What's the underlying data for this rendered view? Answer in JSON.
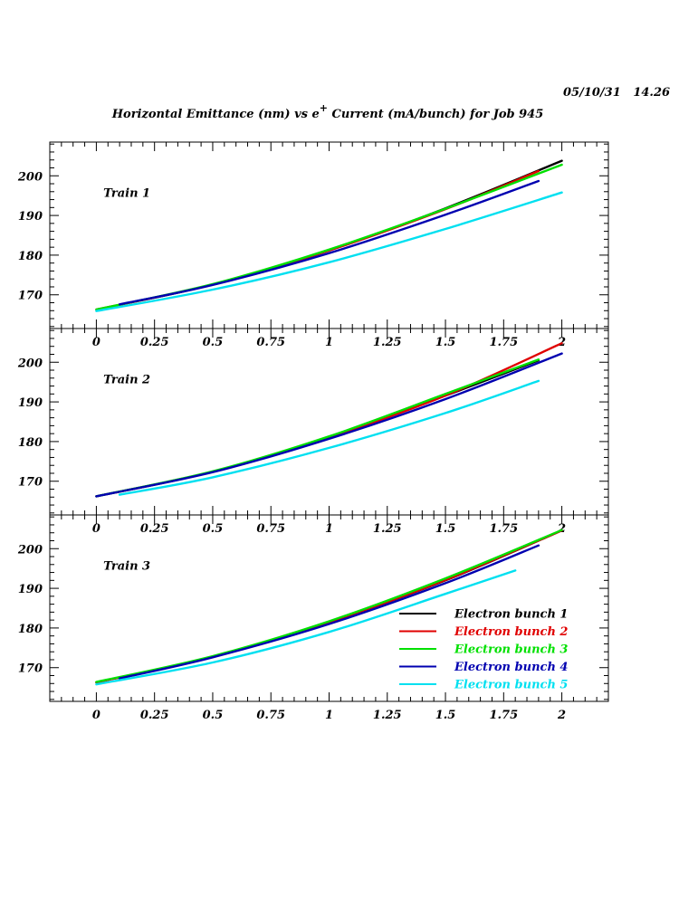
{
  "header": {
    "timestamp": "05/10/31   14.26",
    "title_part1": "Horizontal Emittance (nm) vs e",
    "title_superscript": "+",
    "title_part2": " Current (mA/bunch) for Job 945"
  },
  "chart_data": {
    "type": "line",
    "xlim": [
      -0.2,
      2.2
    ],
    "ylim": [
      161.5,
      208.5
    ],
    "x_ticks": [
      "0",
      "0.25",
      "0.5",
      "0.75",
      "1",
      "1.25",
      "1.5",
      "1.75",
      "2"
    ],
    "x_tick_values": [
      0,
      0.25,
      0.5,
      0.75,
      1,
      1.25,
      1.5,
      1.75,
      2
    ],
    "y_ticks": [
      "170",
      "180",
      "190",
      "200"
    ],
    "y_tick_values": [
      170,
      180,
      190,
      200
    ],
    "legend_position": "bottom-right of Train 3 panel",
    "legend": [
      {
        "name": "Electron bunch 1",
        "color": "#000000"
      },
      {
        "name": "Electron bunch 2",
        "color": "#e00000"
      },
      {
        "name": "Electron bunch 3",
        "color": "#00e000"
      },
      {
        "name": "Electron bunch 4",
        "color": "#0000b0"
      },
      {
        "name": "Electron bunch 5",
        "color": "#00e0f0"
      }
    ],
    "panels": [
      {
        "label": "Train 1",
        "series": [
          {
            "name": "Electron bunch 1",
            "x": [
              0.1,
              0.5,
              1.0,
              1.5,
              2.0
            ],
            "y": [
              167.5,
              172.6,
              181.2,
              191.8,
              203.8
            ]
          },
          {
            "name": "Electron bunch 2",
            "x": [
              0.0,
              0.5,
              1.0,
              1.5,
              1.9
            ],
            "y": [
              166.3,
              172.6,
              181.2,
              191.6,
              201.2
            ]
          },
          {
            "name": "Electron bunch 3",
            "x": [
              0.0,
              0.5,
              1.0,
              1.5,
              2.0
            ],
            "y": [
              166.3,
              172.7,
              181.4,
              191.7,
              202.8
            ]
          },
          {
            "name": "Electron bunch 4",
            "x": [
              0.1,
              0.5,
              1.0,
              1.5,
              1.9
            ],
            "y": [
              167.6,
              172.5,
              180.5,
              190.2,
              198.7
            ]
          },
          {
            "name": "Electron bunch 5",
            "x": [
              0.0,
              0.5,
              1.0,
              1.5,
              2.0
            ],
            "y": [
              165.9,
              171.3,
              178.2,
              186.6,
              195.8
            ]
          }
        ]
      },
      {
        "label": "Train 2",
        "series": [
          {
            "name": "Electron bunch 1",
            "x": [
              0.0,
              0.5,
              1.0,
              1.5,
              1.9
            ],
            "y": [
              166.2,
              172.4,
              181.1,
              191.6,
              200.5
            ]
          },
          {
            "name": "Electron bunch 2",
            "x": [
              0.0,
              0.5,
              1.0,
              1.5,
              2.0
            ],
            "y": [
              166.2,
              172.4,
              181.1,
              191.6,
              204.8
            ]
          },
          {
            "name": "Electron bunch 3",
            "x": [
              0.0,
              0.5,
              1.0,
              1.5,
              1.9
            ],
            "y": [
              166.2,
              172.5,
              181.3,
              192.0,
              200.7
            ]
          },
          {
            "name": "Electron bunch 4",
            "x": [
              0.0,
              0.5,
              1.0,
              1.5,
              2.0
            ],
            "y": [
              166.2,
              172.3,
              180.7,
              190.7,
              202.2
            ]
          },
          {
            "name": "Electron bunch 5",
            "x": [
              0.1,
              0.5,
              1.0,
              1.5,
              1.9
            ],
            "y": [
              166.6,
              171.0,
              178.4,
              187.2,
              195.3
            ]
          }
        ]
      },
      {
        "label": "Train 3",
        "series": [
          {
            "name": "Electron bunch 1",
            "x": [
              0.0,
              0.5,
              1.0,
              1.5,
              2.0
            ],
            "y": [
              166.3,
              172.8,
              181.5,
              192.0,
              204.6
            ]
          },
          {
            "name": "Electron bunch 2",
            "x": [
              0.0,
              0.5,
              1.0,
              1.5,
              2.0
            ],
            "y": [
              166.3,
              172.8,
              181.5,
              192.1,
              204.6
            ]
          },
          {
            "name": "Electron bunch 3",
            "x": [
              0.0,
              0.5,
              1.0,
              1.5,
              2.0
            ],
            "y": [
              166.4,
              172.9,
              181.7,
              192.5,
              204.7
            ]
          },
          {
            "name": "Electron bunch 4",
            "x": [
              0.1,
              0.5,
              1.0,
              1.5,
              1.9
            ],
            "y": [
              167.3,
              172.6,
              181.0,
              191.3,
              200.8
            ]
          },
          {
            "name": "Electron bunch 5",
            "x": [
              0.0,
              0.5,
              1.0,
              1.5,
              1.8
            ],
            "y": [
              165.8,
              171.3,
              179.0,
              188.6,
              194.5
            ]
          }
        ]
      }
    ]
  }
}
